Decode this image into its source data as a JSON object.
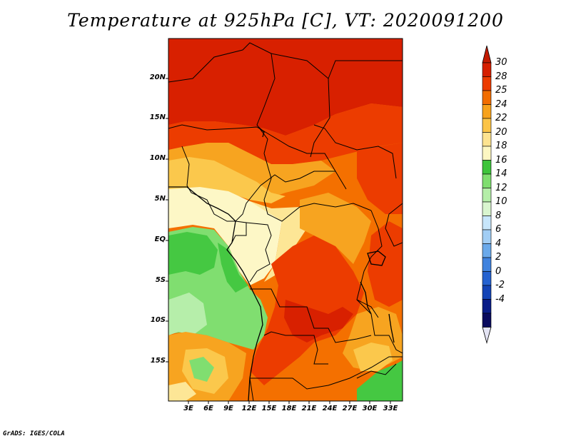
{
  "title": "Temperature at 925hPa [C], VT: 2020091200",
  "credit": "GrADS: IGES/COLA",
  "lat_labels": [
    "20N",
    "15N",
    "10N",
    "5N",
    "EQ",
    "5S",
    "10S",
    "15S"
  ],
  "lon_labels": [
    "3E",
    "6E",
    "9E",
    "12E",
    "15E",
    "18E",
    "21E",
    "24E",
    "27E",
    "30E",
    "33E"
  ],
  "colorbar": {
    "labels": [
      "30",
      "28",
      "25",
      "24",
      "22",
      "20",
      "18",
      "16",
      "14",
      "12",
      "10",
      "8",
      "6",
      "4",
      "2",
      "0",
      "-2",
      "-4"
    ],
    "colors": [
      "#d61f00",
      "#ec3b00",
      "#f26d00",
      "#f7a21c",
      "#fbc447",
      "#fde390",
      "#fdf7c2",
      "#3dc43b",
      "#7fde6f",
      "#b4eea8",
      "#d9f5cf",
      "#c7e6fb",
      "#a1cdf4",
      "#6aa9ea",
      "#3f82de",
      "#2562d0",
      "#1444b6",
      "#091c88",
      "#090a5e"
    ],
    "top_arrow_color": "#c21a00",
    "bottom_arrow_color": "#e4e4f4"
  },
  "map_palette": {
    "hot": "#d82000",
    "very_warm": "#ec3c00",
    "warm": "#f47000",
    "orange": "#f7a420",
    "light_orange": "#fbc84c",
    "pale_yellow": "#fde696",
    "cream": "#fdf7c6",
    "green_dark": "#45c842",
    "green": "#80de70",
    "green_light": "#b6eeaa"
  }
}
